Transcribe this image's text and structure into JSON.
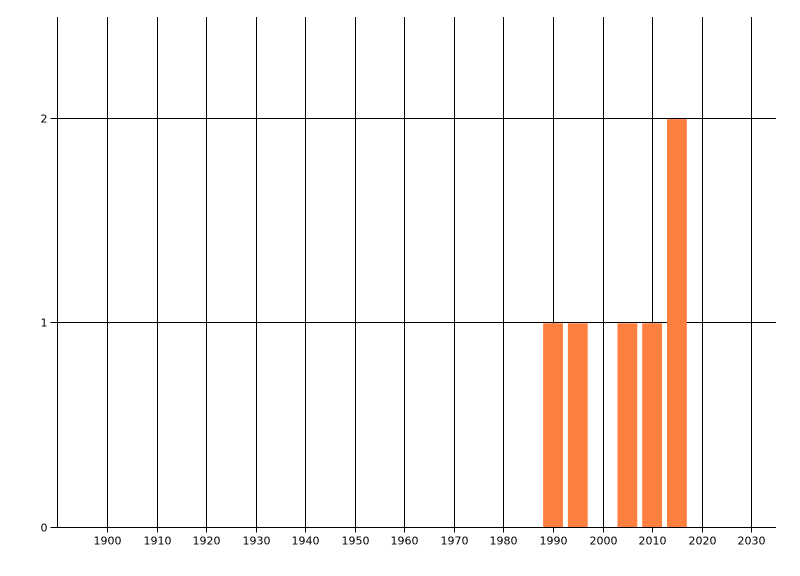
{
  "chart_data": {
    "type": "bar",
    "title": "",
    "xlabel": "",
    "ylabel": "",
    "x": [
      1990,
      1995,
      2005,
      2010,
      2015
    ],
    "values": [
      1,
      1,
      1,
      1,
      2
    ],
    "bar_width_years": 4,
    "xlim": [
      1890,
      2035
    ],
    "ylim": [
      0,
      2.5
    ],
    "x_ticks": [
      1900,
      1910,
      1920,
      1930,
      1940,
      1950,
      1960,
      1970,
      1980,
      1990,
      2000,
      2010,
      2020,
      2030
    ],
    "y_ticks": [
      0,
      1,
      2
    ],
    "grid": true,
    "legend": "none",
    "colors": {
      "bar": "#FF7F3F",
      "grid": "#000000",
      "axis": "#000000"
    }
  }
}
